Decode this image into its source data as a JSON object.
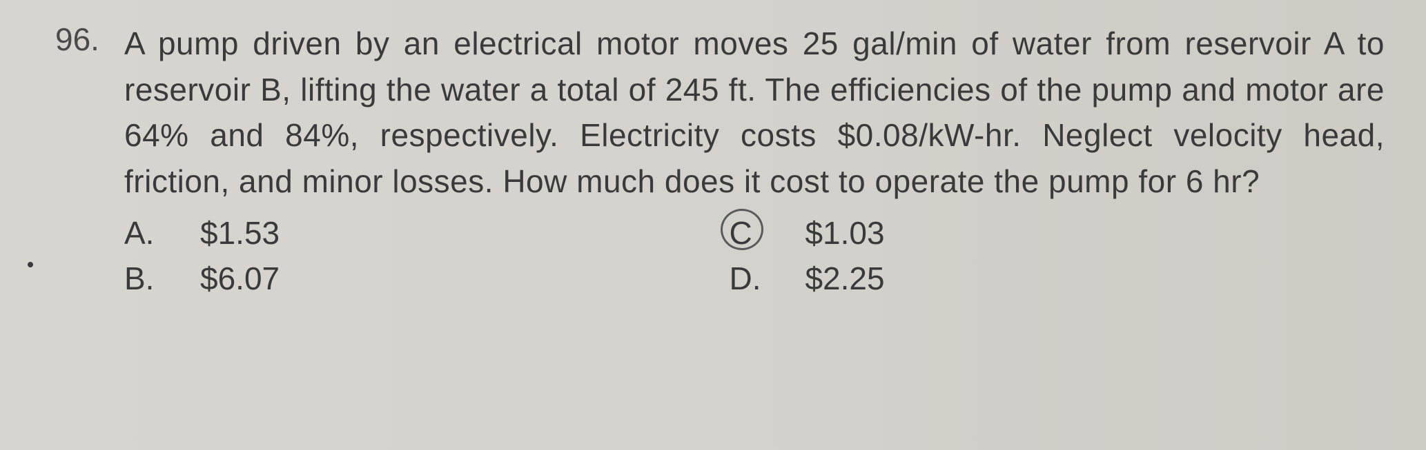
{
  "question": {
    "number": "96.",
    "text": "A pump driven by an electrical motor moves 25 gal/min of water from reservoir A to reservoir B, lifting the water a total of 245 ft. The efficiencies of the pump and motor are 64% and 84%, respectively. Electricity costs $0.08/kW-hr. Neglect velocity head, friction, and minor losses. How much does it cost to operate the pump for 6 hr?"
  },
  "options": {
    "a": {
      "label": "A.",
      "value": "$1.53"
    },
    "b": {
      "label": "B.",
      "value": "$6.07"
    },
    "c": {
      "label": "C",
      "value": "$1.03"
    },
    "d": {
      "label": "D.",
      "value": "$2.25"
    }
  },
  "styling": {
    "background_colors": [
      "#d8d5d0",
      "#d5d2cd",
      "#cecbc5"
    ],
    "text_color": "#3a3a3a",
    "circle_color": "#5a5a5a",
    "font_size_pt": 34,
    "circled_option": "c"
  }
}
